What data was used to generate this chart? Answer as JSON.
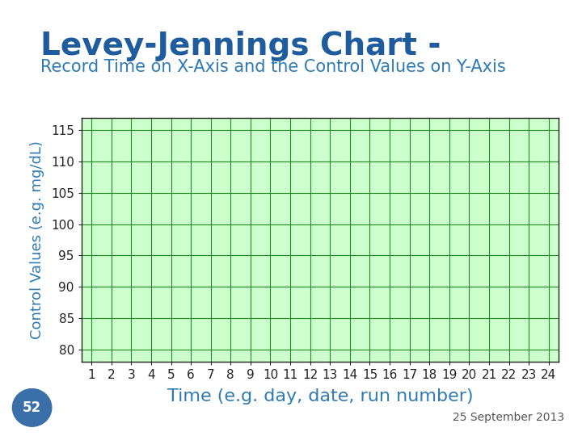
{
  "title": "Levey-Jennings Chart -",
  "subtitle": "Record Time on X-Axis and the Control Values on Y-Axis",
  "xlabel": "Time (e.g. day, date, run number)",
  "ylabel": "Control Values (e.g. mg/dL)",
  "xlim": [
    0.5,
    24.5
  ],
  "ylim": [
    78,
    117
  ],
  "yticks": [
    80,
    85,
    90,
    95,
    100,
    105,
    110,
    115
  ],
  "xticks": [
    1,
    2,
    3,
    4,
    5,
    6,
    7,
    8,
    9,
    10,
    11,
    12,
    13,
    14,
    15,
    16,
    17,
    18,
    19,
    20,
    21,
    22,
    23,
    24
  ],
  "plot_bg_color": "#ccffcc",
  "fig_bg_color": "#ffffff",
  "grid_color": "#228822",
  "title_color": "#1f5c9e",
  "subtitle_color": "#2e7ab5",
  "xlabel_color": "#2e7ab5",
  "ylabel_color": "#2e7ab5",
  "tick_color": "#222222",
  "title_fontsize": 28,
  "subtitle_fontsize": 15,
  "xlabel_fontsize": 16,
  "ylabel_fontsize": 13,
  "tick_fontsize": 11,
  "footer_text": "25 September 2013",
  "footer_fontsize": 10,
  "badge_text": "52",
  "badge_color": "#3a6faa",
  "badge_text_color": "#ffffff"
}
